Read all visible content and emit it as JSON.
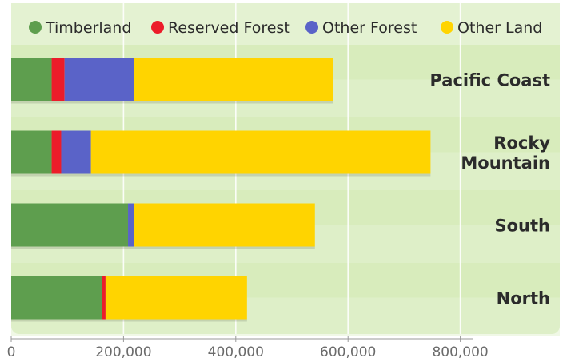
{
  "chart_data": {
    "type": "bar",
    "orientation": "horizontal",
    "stacked": true,
    "categories": [
      "Pacific Coast",
      "Rocky Mountain",
      "South",
      "North"
    ],
    "category_labels": [
      [
        "Pacific Coast"
      ],
      [
        "Rocky",
        "Mountain"
      ],
      [
        "South"
      ],
      [
        "North"
      ]
    ],
    "series": [
      {
        "name": "Timberland",
        "color": "#5e9e4e",
        "values": [
          72000,
          72000,
          208000,
          162000
        ]
      },
      {
        "name": "Reserved Forest",
        "color": "#ec1c2a",
        "values": [
          23000,
          17000,
          0,
          6000
        ]
      },
      {
        "name": "Other Forest",
        "color": "#5a63c8",
        "values": [
          123000,
          53000,
          10000,
          0
        ]
      },
      {
        "name": "Other Land",
        "color": "#ffd400",
        "values": [
          356000,
          605000,
          323000,
          252000
        ]
      }
    ],
    "x_ticks": [
      0,
      200000,
      400000,
      600000,
      800000
    ],
    "x_tick_labels": [
      "0",
      "200,000",
      "400,000",
      "600,000",
      "800,000"
    ],
    "xlim": [
      0,
      1000000
    ],
    "grid": true,
    "legend_position": "top",
    "colors": {
      "background": "#d8ecbc",
      "band_light": "#e4f2d2",
      "grid": "#ffffff",
      "label": "#2b2b2b"
    }
  }
}
